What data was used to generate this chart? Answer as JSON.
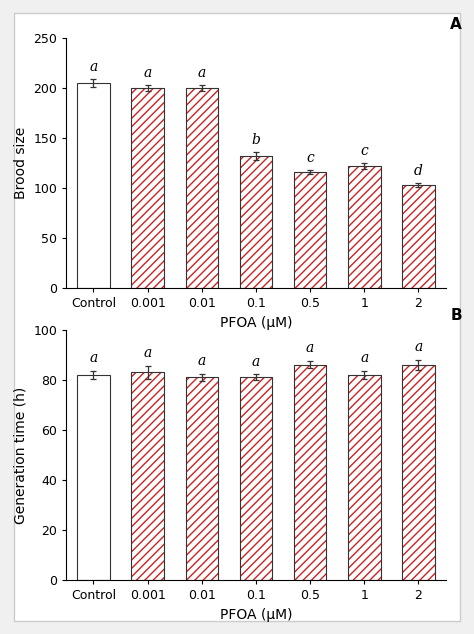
{
  "categories": [
    "Control",
    "0.001",
    "0.01",
    "0.1",
    "0.5",
    "1",
    "2"
  ],
  "xlabel": "PFOA (μM)",
  "panel_A": {
    "values": [
      205,
      200,
      200,
      132,
      116,
      122,
      103
    ],
    "errors": [
      4,
      3,
      3,
      4,
      2,
      3,
      2
    ],
    "ylabel": "Brood size",
    "ylim": [
      0,
      250
    ],
    "yticks": [
      0,
      50,
      100,
      150,
      200,
      250
    ],
    "label": "A",
    "sig_labels": [
      "a",
      "a",
      "a",
      "b",
      "c",
      "c",
      "d"
    ]
  },
  "panel_B": {
    "values": [
      82,
      83,
      81,
      81,
      86,
      82,
      86
    ],
    "errors": [
      1.5,
      2.5,
      1.5,
      1.2,
      1.5,
      1.5,
      2.0
    ],
    "ylabel": "Generation time (h)",
    "ylim": [
      0,
      100
    ],
    "yticks": [
      0,
      20,
      40,
      60,
      80,
      100
    ],
    "label": "B",
    "sig_labels": [
      "a",
      "a",
      "a",
      "a",
      "a",
      "a",
      "a"
    ]
  },
  "hatch_pattern": "////",
  "hatch_color": "#cc2222",
  "bar_face_color": "#ffffff",
  "bar_edge_color": "#333333",
  "control_face_color": "#ffffff",
  "control_edge_color": "#333333",
  "error_color": "#333333",
  "sig_fontsize": 10,
  "axis_label_fontsize": 10,
  "tick_fontsize": 9,
  "panel_label_fontsize": 11,
  "bar_width": 0.6
}
